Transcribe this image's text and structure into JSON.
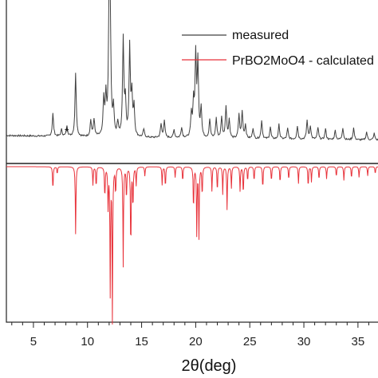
{
  "chart_data": {
    "type": "line",
    "title": "",
    "xlabel": "2θ(deg)",
    "ylabel": "",
    "xlim": [
      2.5,
      37
    ],
    "x_ticks": [
      "5",
      "10",
      "15",
      "20",
      "25",
      "30",
      "35"
    ],
    "grid": false,
    "legend_placement": "top-right",
    "annotation": "*",
    "annotation_x": 8.1,
    "colors": {
      "measured": "#404040",
      "calculated": "#e8323a",
      "axis": "#222222"
    },
    "series": [
      {
        "name": "measured",
        "baseline": 0.06,
        "peaks": [
          [
            6.8,
            0.17
          ],
          [
            7.6,
            0.05
          ],
          [
            8.1,
            0.08
          ],
          [
            8.9,
            0.47
          ],
          [
            10.3,
            0.12
          ],
          [
            10.6,
            0.13
          ],
          [
            11.5,
            0.27
          ],
          [
            11.7,
            0.28
          ],
          [
            12.0,
            1.0
          ],
          [
            12.1,
            0.78
          ],
          [
            12.4,
            0.2
          ],
          [
            12.8,
            0.1
          ],
          [
            13.3,
            0.72
          ],
          [
            13.5,
            0.25
          ],
          [
            13.9,
            0.67
          ],
          [
            14.1,
            0.3
          ],
          [
            14.3,
            0.22
          ],
          [
            15.2,
            0.06
          ],
          [
            16.8,
            0.1
          ],
          [
            17.1,
            0.13
          ],
          [
            18.0,
            0.06
          ],
          [
            18.7,
            0.08
          ],
          [
            19.6,
            0.17
          ],
          [
            19.8,
            0.25
          ],
          [
            20.0,
            0.6
          ],
          [
            20.2,
            0.55
          ],
          [
            20.5,
            0.22
          ],
          [
            21.3,
            0.14
          ],
          [
            21.9,
            0.15
          ],
          [
            22.4,
            0.16
          ],
          [
            22.8,
            0.24
          ],
          [
            23.1,
            0.14
          ],
          [
            24.0,
            0.18
          ],
          [
            24.3,
            0.2
          ],
          [
            24.6,
            0.1
          ],
          [
            25.3,
            0.08
          ],
          [
            26.1,
            0.14
          ],
          [
            26.9,
            0.09
          ],
          [
            27.7,
            0.11
          ],
          [
            28.5,
            0.08
          ],
          [
            29.4,
            0.1
          ],
          [
            30.3,
            0.14
          ],
          [
            30.6,
            0.1
          ],
          [
            31.3,
            0.09
          ],
          [
            32.0,
            0.08
          ],
          [
            32.9,
            0.07
          ],
          [
            33.6,
            0.09
          ],
          [
            34.6,
            0.09
          ],
          [
            35.8,
            0.06
          ],
          [
            36.5,
            0.05
          ]
        ]
      },
      {
        "name": "PrBO2MoO4 - calculated",
        "peaks": [
          [
            6.8,
            0.16
          ],
          [
            7.2,
            0.05
          ],
          [
            8.9,
            0.44
          ],
          [
            10.5,
            0.12
          ],
          [
            10.8,
            0.14
          ],
          [
            11.6,
            0.21
          ],
          [
            11.9,
            0.26
          ],
          [
            12.1,
            0.82
          ],
          [
            12.3,
            1.0
          ],
          [
            12.6,
            0.18
          ],
          [
            13.3,
            0.65
          ],
          [
            13.6,
            0.22
          ],
          [
            14.0,
            0.57
          ],
          [
            14.2,
            0.28
          ],
          [
            14.5,
            0.12
          ],
          [
            15.3,
            0.06
          ],
          [
            16.9,
            0.12
          ],
          [
            17.2,
            0.14
          ],
          [
            18.1,
            0.07
          ],
          [
            18.8,
            0.1
          ],
          [
            19.8,
            0.3
          ],
          [
            20.1,
            0.44
          ],
          [
            20.3,
            0.46
          ],
          [
            20.6,
            0.2
          ],
          [
            21.5,
            0.16
          ],
          [
            22.0,
            0.17
          ],
          [
            22.5,
            0.18
          ],
          [
            22.9,
            0.28
          ],
          [
            23.3,
            0.14
          ],
          [
            24.1,
            0.16
          ],
          [
            24.4,
            0.19
          ],
          [
            24.8,
            0.1
          ],
          [
            25.4,
            0.1
          ],
          [
            26.2,
            0.15
          ],
          [
            27.0,
            0.1
          ],
          [
            27.8,
            0.11
          ],
          [
            28.6,
            0.09
          ],
          [
            29.5,
            0.11
          ],
          [
            30.4,
            0.14
          ],
          [
            30.7,
            0.1
          ],
          [
            31.4,
            0.09
          ],
          [
            32.1,
            0.08
          ],
          [
            33.0,
            0.07
          ],
          [
            33.7,
            0.09
          ],
          [
            34.4,
            0.08
          ],
          [
            35.1,
            0.07
          ],
          [
            35.9,
            0.06
          ],
          [
            36.6,
            0.05
          ]
        ]
      }
    ]
  }
}
